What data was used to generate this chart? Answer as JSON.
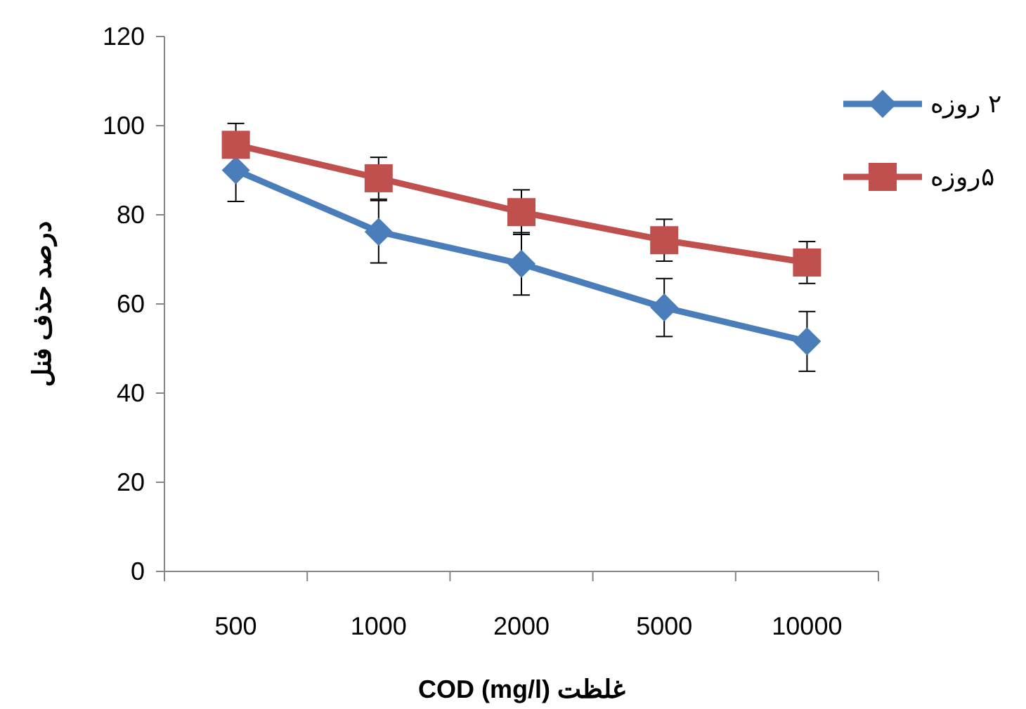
{
  "chart_data": {
    "type": "line",
    "xlabel": "غلظت COD (mg/l)",
    "ylabel": "درصد حذف فنل",
    "categories": [
      "500",
      "1000",
      "2000",
      "5000",
      "10000"
    ],
    "series": [
      {
        "name": "۲ روزه",
        "color": "#4a7ebb",
        "marker": "diamond",
        "values": [
          90,
          76.2,
          69,
          59.2,
          51.6
        ],
        "errors": [
          7,
          7,
          7,
          6.5,
          6.7
        ]
      },
      {
        "name": "۵روزه",
        "color": "#c0504d",
        "marker": "square",
        "values": [
          95.7,
          88.2,
          80.6,
          74.3,
          69.3
        ],
        "errors": [
          4.8,
          4.7,
          5,
          4.7,
          4.7
        ]
      }
    ],
    "ylim": [
      0,
      120
    ],
    "yticks": [
      0,
      20,
      40,
      60,
      80,
      100,
      120
    ],
    "grid": false,
    "legend": "right",
    "line_style": "solid"
  }
}
